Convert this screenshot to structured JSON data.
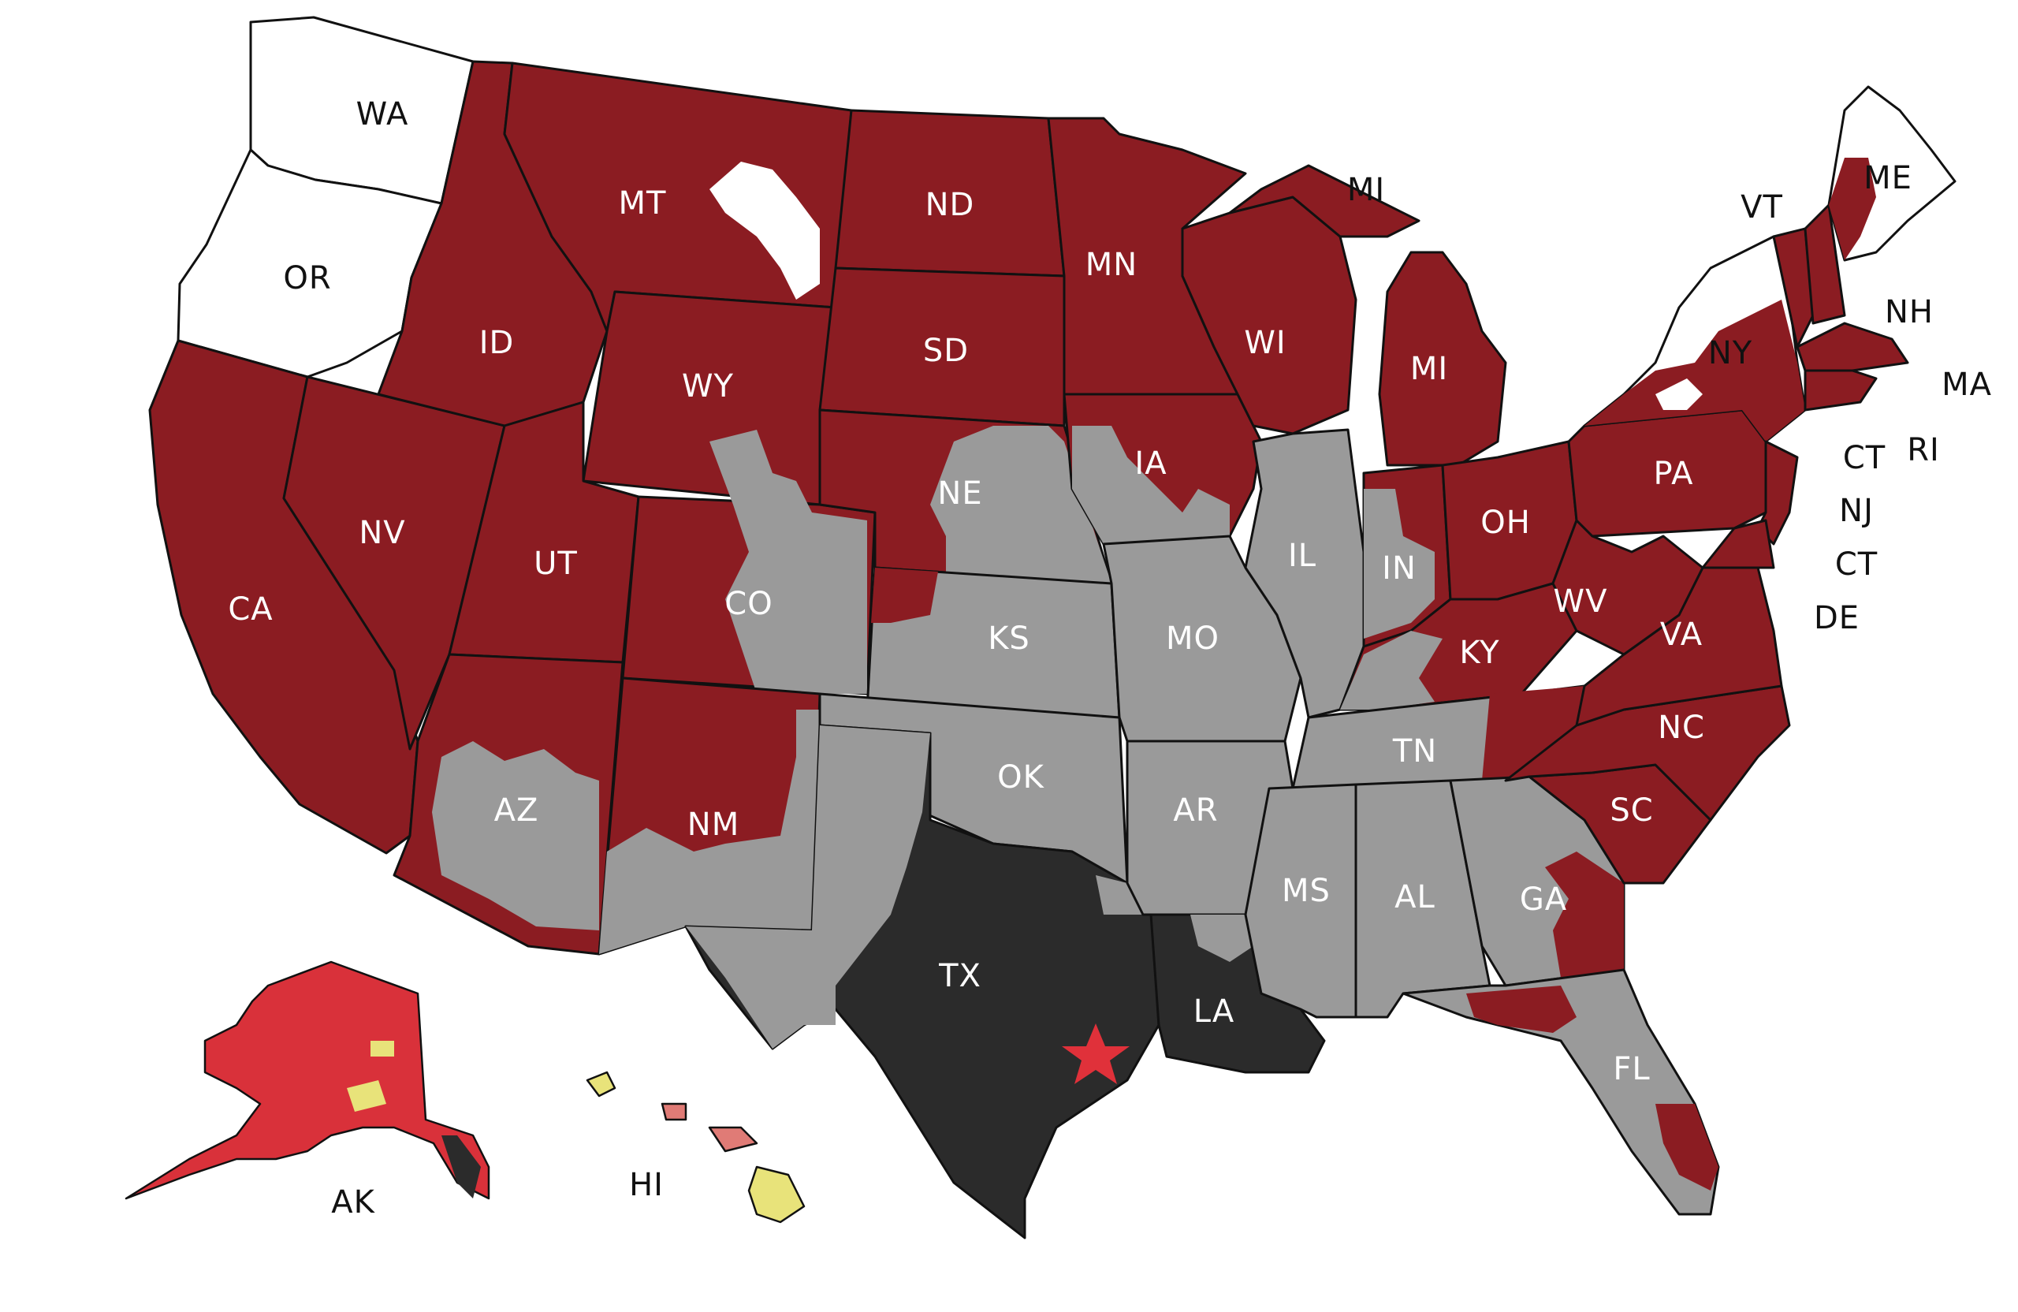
{
  "colors": {
    "dark_red": "#8b1c22",
    "gray": "#9a9a9a",
    "black": "#2b2b2b",
    "white": "#ffffff",
    "red": "#d9313a",
    "salmon": "#e07b76",
    "yellow": "#e8e37a",
    "star": "#e0313a"
  },
  "labels": {
    "WA": "WA",
    "OR": "OR",
    "CA": "CA",
    "NV": "NV",
    "ID": "ID",
    "MT": "MT",
    "WY": "WY",
    "UT": "UT",
    "AZ": "AZ",
    "CO": "CO",
    "NM": "NM",
    "ND": "ND",
    "SD": "SD",
    "NE": "NE",
    "KS": "KS",
    "OK": "OK",
    "TX": "TX",
    "MN": "MN",
    "IA": "IA",
    "MO": "MO",
    "AR": "AR",
    "LA": "LA",
    "WI": "WI",
    "IL": "IL",
    "MI": "MI",
    "MI_upper": "MI",
    "IN": "IN",
    "OH": "OH",
    "KY": "KY",
    "TN": "TN",
    "MS": "MS",
    "AL": "AL",
    "GA": "GA",
    "FL": "FL",
    "SC": "SC",
    "NC": "NC",
    "VA": "VA",
    "WV": "WV",
    "PA": "PA",
    "NY": "NY",
    "VT": "VT",
    "NH": "NH",
    "ME": "ME",
    "MA": "MA",
    "RI": "RI",
    "CT": "CT",
    "CT_2": "CT",
    "NJ": "NJ",
    "DE": "DE",
    "AK": "AK",
    "HI": "HI"
  },
  "star_marker": "star-icon"
}
